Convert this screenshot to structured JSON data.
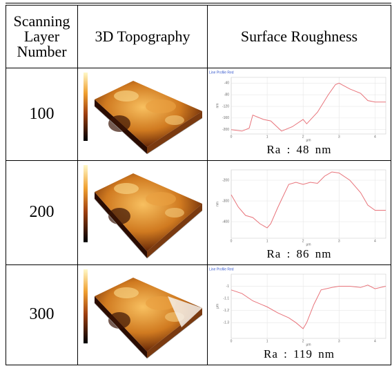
{
  "table": {
    "header": [
      "Scanning Layer Number",
      "3D Topography",
      "Surface Roughness"
    ],
    "rows": [
      {
        "layer": "100",
        "ra": "Ra : 48 nm",
        "profile": {
          "type": "line",
          "title": "Line Profile Red",
          "ylabel": "nm",
          "xlabel": "μm",
          "x": [
            0,
            0.3,
            0.5,
            0.6,
            0.9,
            1.1,
            1.4,
            1.7,
            2,
            2.1,
            2.4,
            2.7,
            2.9,
            3.0,
            3.3,
            3.6,
            3.8,
            4.0,
            4.3
          ],
          "values": [
            -200,
            -205,
            -195,
            -150,
            -165,
            -170,
            -205,
            -190,
            -165,
            -180,
            -140,
            -80,
            -45,
            -40,
            -60,
            -75,
            -100,
            -105,
            -105
          ],
          "xlim": [
            0,
            4.3
          ],
          "xticks": [
            0,
            1,
            2,
            3,
            4
          ],
          "ylim": [
            -215,
            -20
          ],
          "yticks": [
            -40,
            -80,
            -120,
            -160,
            -200
          ],
          "color": "#e8737a"
        }
      },
      {
        "layer": "200",
        "ra": "Ra : 86 nm",
        "profile": {
          "type": "line",
          "ylabel": "nm",
          "xlabel": "μm",
          "x": [
            0,
            0.2,
            0.4,
            0.6,
            0.8,
            1,
            1.1,
            1.3,
            1.6,
            1.8,
            2,
            2.2,
            2.4,
            2.6,
            2.8,
            3,
            3.3,
            3.6,
            3.8,
            4.0,
            4.3
          ],
          "values": [
            -270,
            -330,
            -370,
            -380,
            -410,
            -430,
            -410,
            -330,
            -220,
            -210,
            -220,
            -210,
            -215,
            -180,
            -160,
            -165,
            -200,
            -260,
            -320,
            -345,
            -345
          ],
          "xlim": [
            0,
            4.3
          ],
          "xticks": [
            0,
            1,
            2,
            3,
            4
          ],
          "ylim": [
            -480,
            -150
          ],
          "yticks": [
            -200,
            -300,
            -400
          ],
          "color": "#e8737a"
        }
      },
      {
        "layer": "300",
        "ra": "Ra : 119 nm",
        "profile": {
          "type": "line",
          "title": "Line Profile Red",
          "ylabel": "μm",
          "xlabel": "μm",
          "x": [
            0,
            0.3,
            0.6,
            1,
            1.3,
            1.6,
            1.8,
            2,
            2.1,
            2.3,
            2.5,
            2.8,
            3,
            3.3,
            3.6,
            3.8,
            4.0,
            4.3
          ],
          "values": [
            -1.03,
            -1.06,
            -1.12,
            -1.17,
            -1.22,
            -1.26,
            -1.3,
            -1.35,
            -1.3,
            -1.15,
            -1.03,
            -1.01,
            -1.0,
            -1.0,
            -1.01,
            -0.99,
            -1.02,
            -1.0
          ],
          "xlim": [
            0,
            4.3
          ],
          "xticks": [
            0,
            1,
            2,
            3,
            4
          ],
          "ylim": [
            -1.43,
            -0.9
          ],
          "yticks": [
            -1,
            -1.1,
            -1.2,
            -1.3
          ],
          "color": "#e8737a"
        }
      }
    ]
  }
}
